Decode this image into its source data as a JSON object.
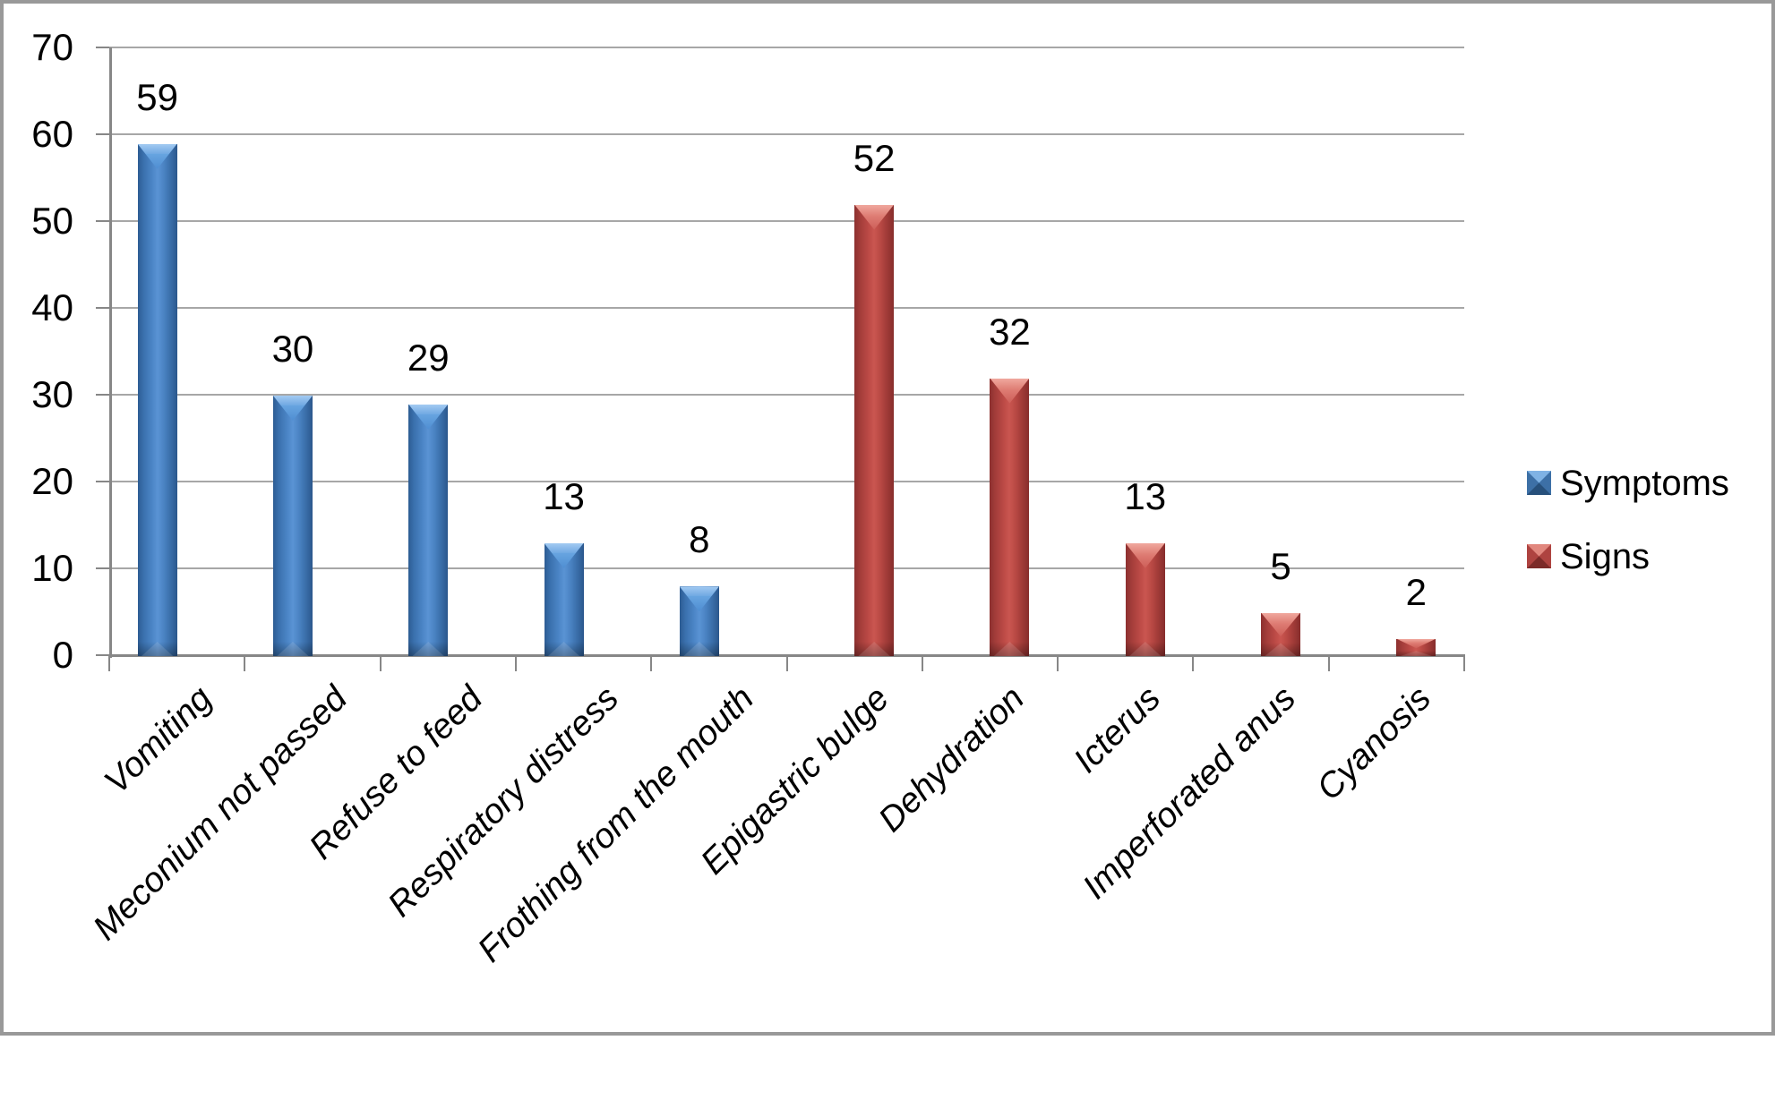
{
  "chart_data": {
    "type": "bar",
    "title": "",
    "categories": [
      "Vomiting",
      "Meconium not passed",
      "Refuse to feed",
      "Respiratory distress",
      "Frothing from the mouth",
      "Epigastric bulge",
      "Dehydration",
      "Icterus",
      "Imperforated anus",
      "Cyanosis"
    ],
    "series": [
      {
        "name": "Symptoms",
        "color": "#4A82C2",
        "values": [
          59,
          30,
          29,
          13,
          8,
          null,
          null,
          null,
          null,
          null
        ]
      },
      {
        "name": "Signs",
        "color": "#BE4B48",
        "values": [
          null,
          null,
          null,
          null,
          null,
          52,
          32,
          13,
          5,
          2
        ]
      }
    ],
    "data_labels": [
      59,
      30,
      29,
      13,
      8,
      52,
      32,
      13,
      5,
      2
    ],
    "xlabel": "",
    "ylabel": "",
    "ylim": [
      0,
      70
    ],
    "ytick_interval": 10,
    "yticks": [
      "0",
      "10",
      "20",
      "30",
      "40",
      "50",
      "60",
      "70"
    ],
    "grid": true,
    "grid_color": "#A7A7A7",
    "axis_color": "#878787",
    "legend_position": "right"
  }
}
